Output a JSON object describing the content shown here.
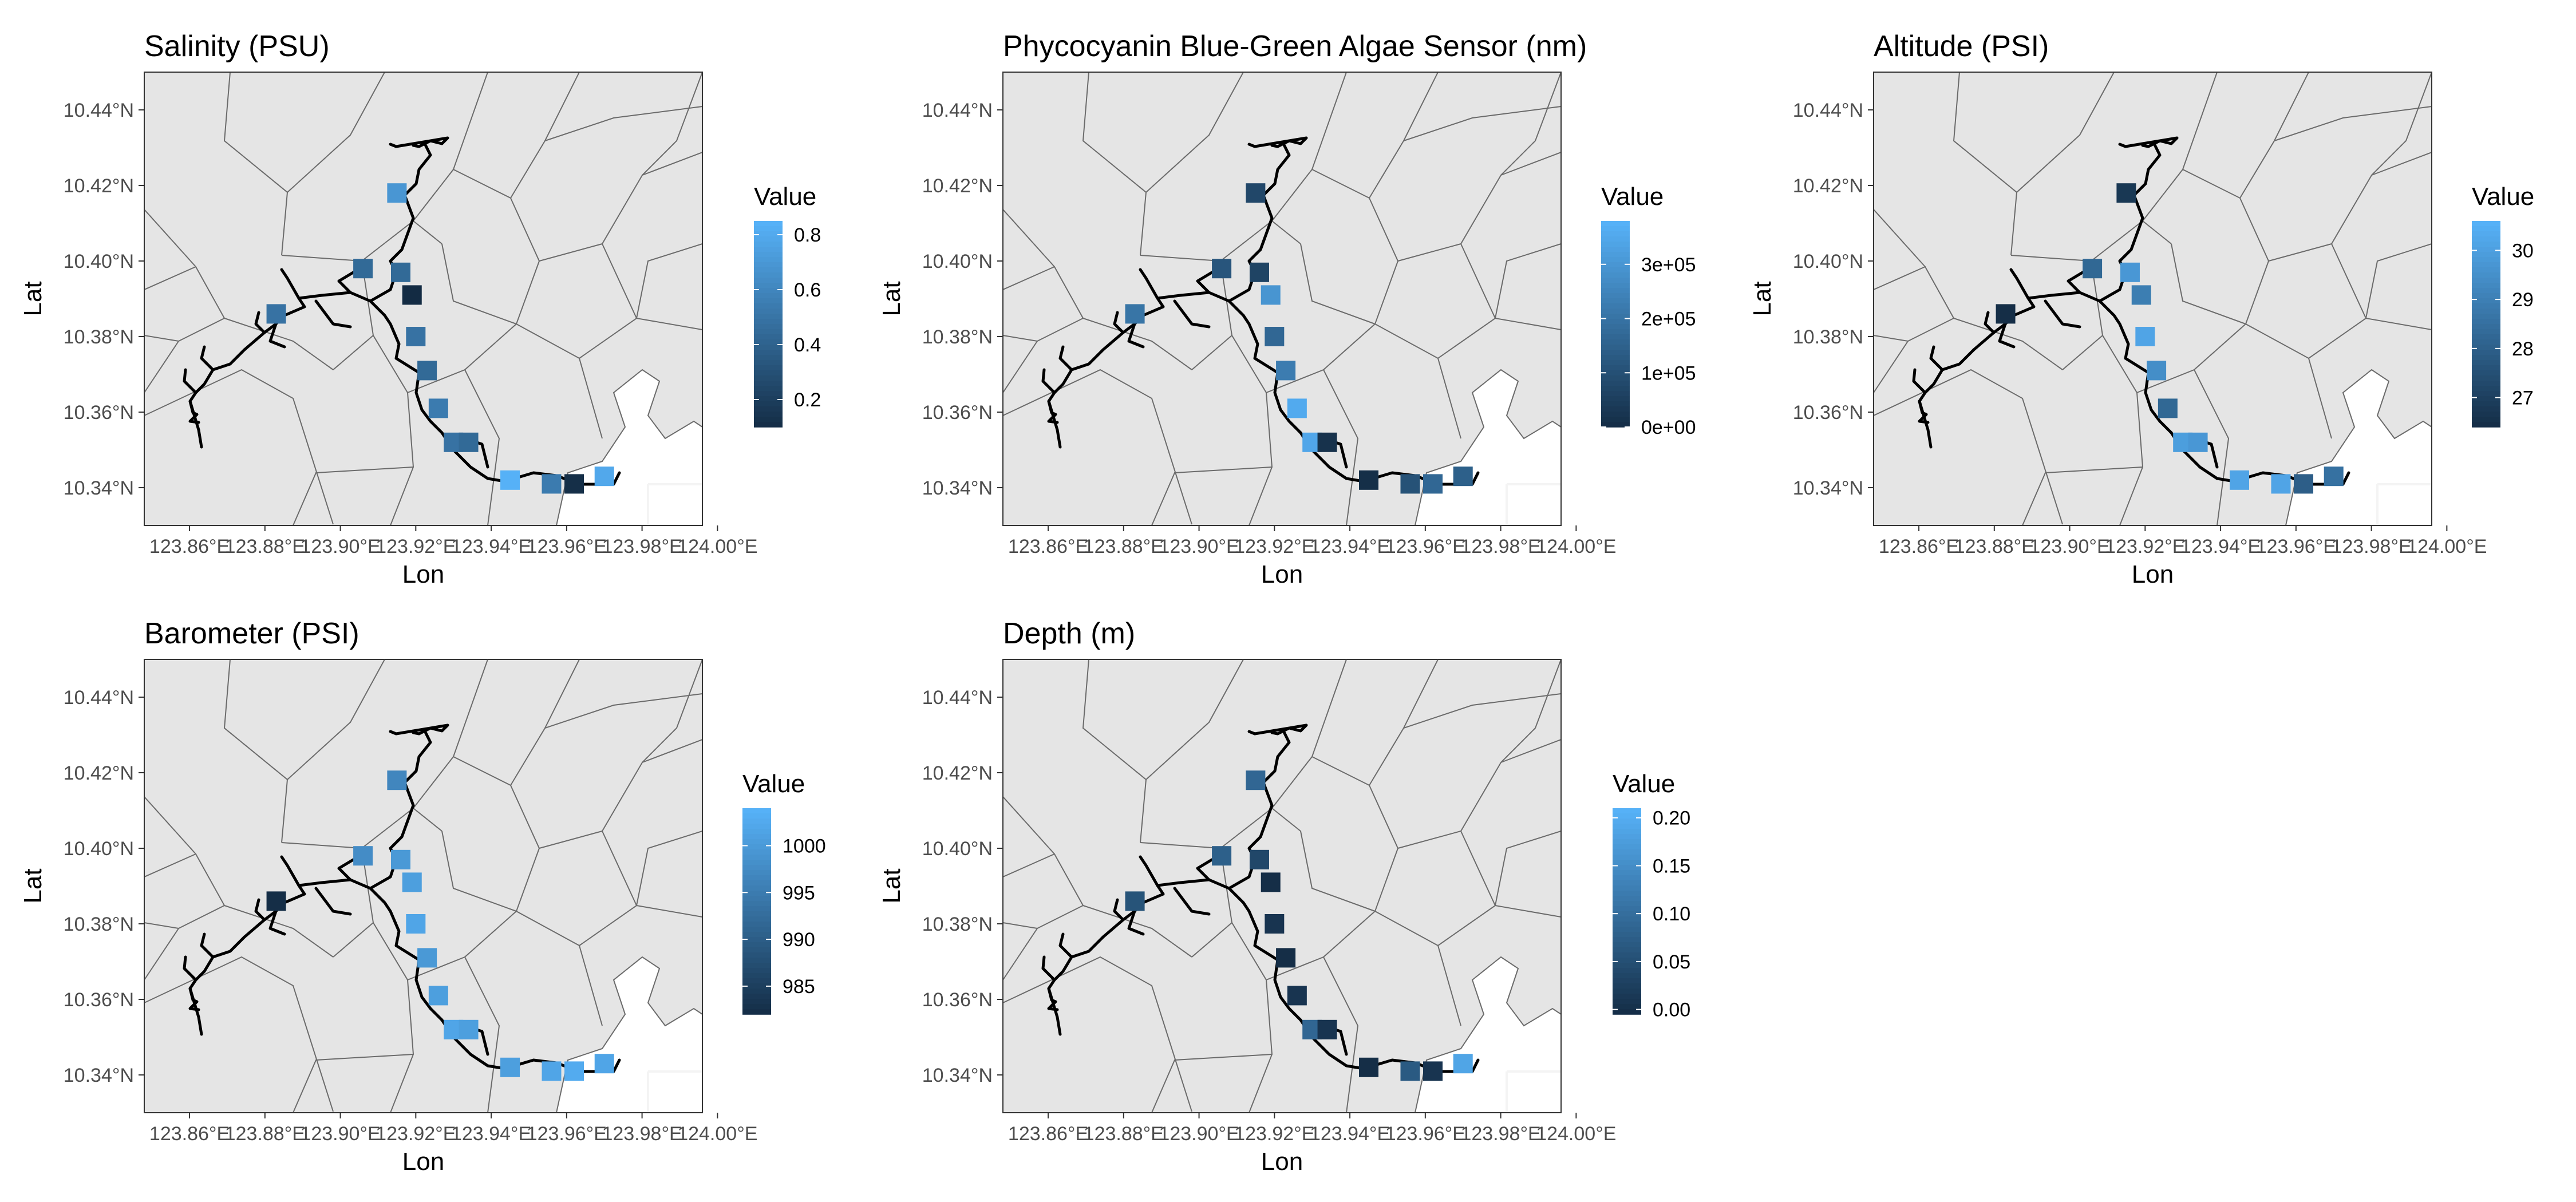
{
  "colors": {
    "panel_bg": "#e5e5e5",
    "region_line": "#6b6b6b",
    "river": "#000000",
    "water": "#ffffff",
    "grid_white": "#f4f4f4",
    "scale_low": "#132b43",
    "scale_high": "#56b1f7",
    "axis_text": "#4d4d4d",
    "title_text": "#000000"
  },
  "shared": {
    "xlabel": "Lon",
    "ylabel": "Lat",
    "legend_title": "Value",
    "x_ticks": [
      "123.86°E",
      "123.88°E",
      "123.90°E",
      "123.92°E",
      "123.94°E",
      "123.96°E",
      "123.98°E",
      "124.00°E"
    ],
    "y_ticks": [
      "10.34°N",
      "10.36°N",
      "10.38°N",
      "10.40°N",
      "10.42°N",
      "10.44°N"
    ]
  },
  "chart_data": [
    {
      "type": "scatter",
      "title": "Salinity (PSU)",
      "xlabel": "Lon",
      "ylabel": "Lat",
      "xlim": [
        123.848,
        123.996
      ],
      "ylim": [
        10.33,
        10.45
      ],
      "x_ticks": [
        123.86,
        123.88,
        123.9,
        123.92,
        123.94,
        123.96,
        123.98,
        124.0
      ],
      "y_ticks": [
        10.34,
        10.36,
        10.38,
        10.4,
        10.42,
        10.44
      ],
      "legend": {
        "title": "Value",
        "range": [
          0.1,
          0.85
        ],
        "ticks": [
          0.2,
          0.4,
          0.6,
          0.8
        ],
        "tick_labels": [
          "0.2",
          "0.4",
          "0.6",
          "0.8"
        ]
      },
      "points": [
        {
          "lon": 123.883,
          "lat": 10.386,
          "value": 0.5
        },
        {
          "lon": 123.906,
          "lat": 10.398,
          "value": 0.45
        },
        {
          "lon": 123.915,
          "lat": 10.418,
          "value": 0.7
        },
        {
          "lon": 123.916,
          "lat": 10.397,
          "value": 0.45
        },
        {
          "lon": 123.919,
          "lat": 10.391,
          "value": 0.1
        },
        {
          "lon": 123.92,
          "lat": 10.38,
          "value": 0.5
        },
        {
          "lon": 123.923,
          "lat": 10.371,
          "value": 0.45
        },
        {
          "lon": 123.926,
          "lat": 10.361,
          "value": 0.55
        },
        {
          "lon": 123.93,
          "lat": 10.352,
          "value": 0.5
        },
        {
          "lon": 123.934,
          "lat": 10.352,
          "value": 0.45
        },
        {
          "lon": 123.945,
          "lat": 10.342,
          "value": 0.85
        },
        {
          "lon": 123.956,
          "lat": 10.341,
          "value": 0.55
        },
        {
          "lon": 123.962,
          "lat": 10.341,
          "value": 0.12
        },
        {
          "lon": 123.97,
          "lat": 10.343,
          "value": 0.8
        }
      ]
    },
    {
      "type": "scatter",
      "title": "Phycocyanin Blue-Green Algae Sensor (nm)",
      "xlabel": "Lon",
      "ylabel": "Lat",
      "xlim": [
        123.848,
        123.996
      ],
      "ylim": [
        10.33,
        10.45
      ],
      "x_ticks": [
        123.86,
        123.88,
        123.9,
        123.92,
        123.94,
        123.96,
        123.98,
        124.0
      ],
      "y_ticks": [
        10.34,
        10.36,
        10.38,
        10.4,
        10.42,
        10.44
      ],
      "legend": {
        "title": "Value",
        "range": [
          0,
          380000
        ],
        "ticks": [
          0,
          100000,
          200000,
          300000
        ],
        "tick_labels": [
          "0e+00",
          "1e+05",
          "2e+05",
          "3e+05"
        ]
      },
      "points": [
        {
          "lon": 123.883,
          "lat": 10.386,
          "value": 210000
        },
        {
          "lon": 123.906,
          "lat": 10.398,
          "value": 120000
        },
        {
          "lon": 123.915,
          "lat": 10.418,
          "value": 80000
        },
        {
          "lon": 123.916,
          "lat": 10.397,
          "value": 70000
        },
        {
          "lon": 123.919,
          "lat": 10.391,
          "value": 300000
        },
        {
          "lon": 123.92,
          "lat": 10.38,
          "value": 170000
        },
        {
          "lon": 123.923,
          "lat": 10.371,
          "value": 230000
        },
        {
          "lon": 123.926,
          "lat": 10.361,
          "value": 360000
        },
        {
          "lon": 123.93,
          "lat": 10.352,
          "value": 350000
        },
        {
          "lon": 123.934,
          "lat": 10.352,
          "value": 20000
        },
        {
          "lon": 123.945,
          "lat": 10.342,
          "value": 10000
        },
        {
          "lon": 123.956,
          "lat": 10.341,
          "value": 110000
        },
        {
          "lon": 123.962,
          "lat": 10.341,
          "value": 170000
        },
        {
          "lon": 123.97,
          "lat": 10.343,
          "value": 150000
        }
      ]
    },
    {
      "type": "scatter",
      "title": "Altitude (PSI)",
      "xlabel": "Lon",
      "ylabel": "Lat",
      "xlim": [
        123.848,
        123.996
      ],
      "ylim": [
        10.33,
        10.45
      ],
      "x_ticks": [
        123.86,
        123.88,
        123.9,
        123.92,
        123.94,
        123.96,
        123.98,
        124.0
      ],
      "y_ticks": [
        10.34,
        10.36,
        10.38,
        10.4,
        10.42,
        10.44
      ],
      "legend": {
        "title": "Value",
        "range": [
          26.4,
          30.6
        ],
        "ticks": [
          27,
          28,
          29,
          30
        ],
        "tick_labels": [
          "27",
          "28",
          "29",
          "30"
        ]
      },
      "points": [
        {
          "lon": 123.883,
          "lat": 10.386,
          "value": 26.5
        },
        {
          "lon": 123.906,
          "lat": 10.398,
          "value": 28.3
        },
        {
          "lon": 123.915,
          "lat": 10.418,
          "value": 26.8
        },
        {
          "lon": 123.916,
          "lat": 10.397,
          "value": 29.8
        },
        {
          "lon": 123.919,
          "lat": 10.391,
          "value": 29.0
        },
        {
          "lon": 123.92,
          "lat": 10.38,
          "value": 30.2
        },
        {
          "lon": 123.923,
          "lat": 10.371,
          "value": 29.5
        },
        {
          "lon": 123.926,
          "lat": 10.361,
          "value": 28.3
        },
        {
          "lon": 123.93,
          "lat": 10.352,
          "value": 30.0
        },
        {
          "lon": 123.934,
          "lat": 10.352,
          "value": 29.8
        },
        {
          "lon": 123.945,
          "lat": 10.342,
          "value": 30.2
        },
        {
          "lon": 123.956,
          "lat": 10.341,
          "value": 30.2
        },
        {
          "lon": 123.962,
          "lat": 10.341,
          "value": 28.0
        },
        {
          "lon": 123.97,
          "lat": 10.343,
          "value": 28.6
        }
      ]
    },
    {
      "type": "scatter",
      "title": "Barometer (PSI)",
      "xlabel": "Lon",
      "ylabel": "Lat",
      "xlim": [
        123.848,
        123.996
      ],
      "ylim": [
        10.33,
        10.45
      ],
      "x_ticks": [
        123.86,
        123.88,
        123.9,
        123.92,
        123.94,
        123.96,
        123.98,
        124.0
      ],
      "y_ticks": [
        10.34,
        10.36,
        10.38,
        10.4,
        10.42,
        10.44
      ],
      "legend": {
        "title": "Value",
        "range": [
          982,
          1004
        ],
        "ticks": [
          985,
          990,
          995,
          1000
        ],
        "tick_labels": [
          "985",
          "990",
          "995",
          "1000"
        ]
      },
      "points": [
        {
          "lon": 123.883,
          "lat": 10.386,
          "value": 982.5
        },
        {
          "lon": 123.906,
          "lat": 10.398,
          "value": 998
        },
        {
          "lon": 123.915,
          "lat": 10.418,
          "value": 997
        },
        {
          "lon": 123.916,
          "lat": 10.397,
          "value": 1000
        },
        {
          "lon": 123.919,
          "lat": 10.391,
          "value": 1001
        },
        {
          "lon": 123.92,
          "lat": 10.38,
          "value": 1002
        },
        {
          "lon": 123.923,
          "lat": 10.371,
          "value": 1000
        },
        {
          "lon": 123.926,
          "lat": 10.361,
          "value": 1001
        },
        {
          "lon": 123.93,
          "lat": 10.352,
          "value": 1002
        },
        {
          "lon": 123.934,
          "lat": 10.352,
          "value": 1001
        },
        {
          "lon": 123.945,
          "lat": 10.342,
          "value": 1001
        },
        {
          "lon": 123.956,
          "lat": 10.341,
          "value": 1002
        },
        {
          "lon": 123.962,
          "lat": 10.341,
          "value": 1003
        },
        {
          "lon": 123.97,
          "lat": 10.343,
          "value": 1002
        }
      ]
    },
    {
      "type": "scatter",
      "title": "Depth (m)",
      "xlabel": "Lon",
      "ylabel": "Lat",
      "xlim": [
        123.848,
        123.996
      ],
      "ylim": [
        10.33,
        10.45
      ],
      "x_ticks": [
        123.86,
        123.88,
        123.9,
        123.92,
        123.94,
        123.96,
        123.98,
        124.0
      ],
      "y_ticks": [
        10.34,
        10.36,
        10.38,
        10.4,
        10.42,
        10.44
      ],
      "legend": {
        "title": "Value",
        "range": [
          -0.005,
          0.21
        ],
        "ticks": [
          0.0,
          0.05,
          0.1,
          0.15,
          0.2
        ],
        "tick_labels": [
          "0.00",
          "0.05",
          "0.10",
          "0.15",
          "0.20"
        ]
      },
      "points": [
        {
          "lon": 123.883,
          "lat": 10.386,
          "value": 0.06
        },
        {
          "lon": 123.906,
          "lat": 10.398,
          "value": 0.08
        },
        {
          "lon": 123.915,
          "lat": 10.418,
          "value": 0.09
        },
        {
          "lon": 123.916,
          "lat": 10.397,
          "value": 0.04
        },
        {
          "lon": 123.919,
          "lat": 10.391,
          "value": 0.0
        },
        {
          "lon": 123.92,
          "lat": 10.38,
          "value": 0.01
        },
        {
          "lon": 123.923,
          "lat": 10.371,
          "value": 0.0
        },
        {
          "lon": 123.926,
          "lat": 10.361,
          "value": 0.01
        },
        {
          "lon": 123.93,
          "lat": 10.352,
          "value": 0.09
        },
        {
          "lon": 123.934,
          "lat": 10.352,
          "value": 0.01
        },
        {
          "lon": 123.945,
          "lat": 10.342,
          "value": 0.0
        },
        {
          "lon": 123.956,
          "lat": 10.341,
          "value": 0.07
        },
        {
          "lon": 123.962,
          "lat": 10.341,
          "value": 0.01
        },
        {
          "lon": 123.97,
          "lat": 10.343,
          "value": 0.19
        }
      ]
    }
  ]
}
